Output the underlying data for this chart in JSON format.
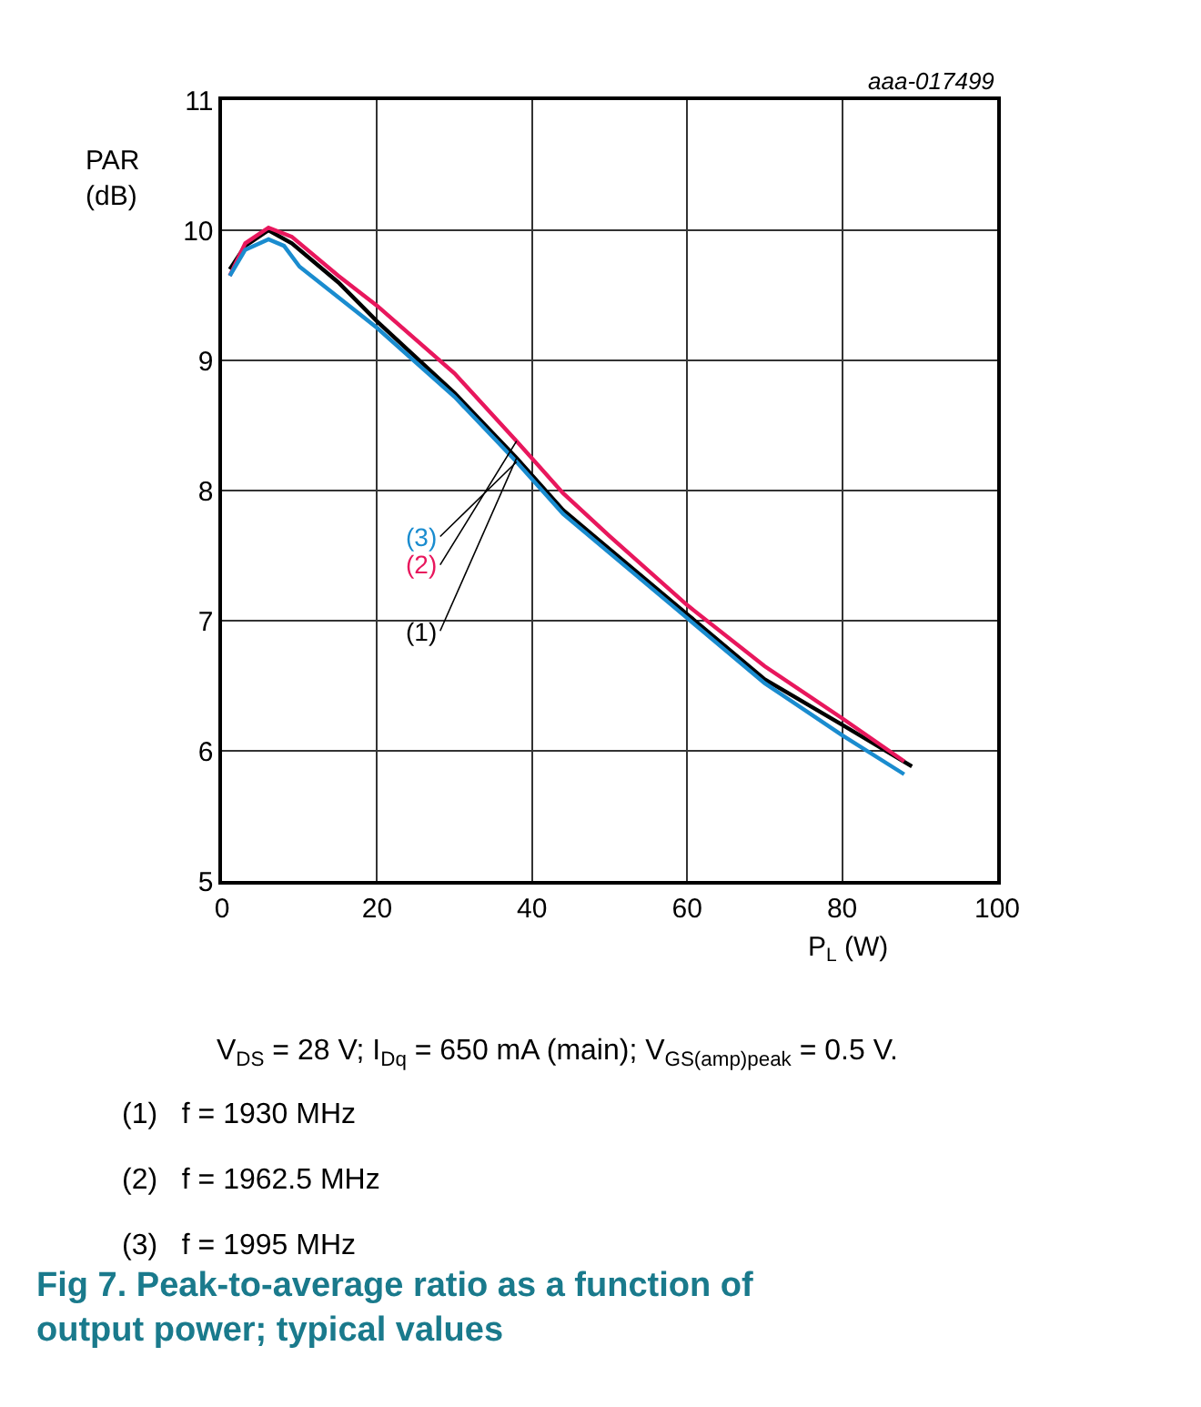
{
  "chart_data": {
    "type": "line",
    "title": "Fig 7. Peak-to-average ratio as a function of output power; typical values",
    "ylabel": "PAR (dB)",
    "xlabel": "P$_{L}$ (W)",
    "xlim": [
      0,
      100
    ],
    "xticks": [
      0,
      20,
      40,
      60,
      80,
      100
    ],
    "ylim": [
      5,
      11
    ],
    "yticks": [
      5,
      6,
      7,
      8,
      9,
      10,
      11
    ],
    "grid": true,
    "legend": false,
    "marker": "none",
    "line_style": "solid",
    "series": [
      {
        "name": "(1)",
        "color": "#000000",
        "x": [
          1,
          3,
          6,
          9,
          15,
          20,
          30,
          38,
          44,
          50,
          60,
          70,
          80,
          89
        ],
        "values": [
          9.7,
          9.88,
          10.0,
          9.9,
          9.6,
          9.3,
          8.75,
          8.25,
          7.85,
          7.55,
          7.05,
          6.55,
          6.2,
          5.88
        ]
      },
      {
        "name": "(2)",
        "color": "#e8175d",
        "x": [
          1,
          3,
          6,
          9,
          15,
          20,
          30,
          38,
          44,
          50,
          60,
          70,
          80,
          88
        ],
        "values": [
          9.65,
          9.9,
          10.02,
          9.95,
          9.65,
          9.42,
          8.9,
          8.38,
          7.98,
          7.65,
          7.12,
          6.65,
          6.25,
          5.92
        ]
      },
      {
        "name": "(3)",
        "color": "#1a8ccf",
        "x": [
          1,
          3,
          6,
          8,
          10,
          20,
          30,
          38,
          44,
          50,
          60,
          70,
          80,
          88
        ],
        "values": [
          9.65,
          9.85,
          9.93,
          9.88,
          9.72,
          9.25,
          8.72,
          8.22,
          7.82,
          7.52,
          7.02,
          6.52,
          6.12,
          5.82
        ]
      }
    ],
    "annotations": [
      "aaa-017499",
      "V$_{DS}$ = 28 V; I$_{Dq}$ = 650 mA (main); V$_{GS(amp)peak}$ = 0.5 V.",
      "(1)   f = 1930 MHz",
      "(2)   f = 1962.5 MHz",
      "(3)   f = 1995 MHz"
    ]
  }
}
